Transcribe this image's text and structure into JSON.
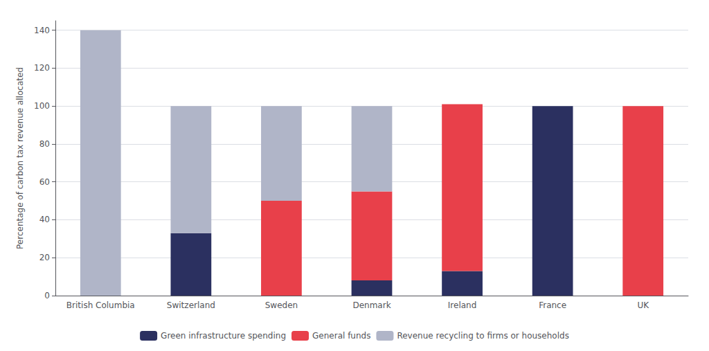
{
  "chart_data": {
    "type": "bar",
    "stacked": true,
    "categories": [
      "British Columbia",
      "Switzerland",
      "Sweden",
      "Denmark",
      "Ireland",
      "France",
      "UK"
    ],
    "series": [
      {
        "name": "Green infrastructure spending",
        "color": "#2b3060",
        "values": [
          0,
          33,
          0,
          8,
          13,
          100,
          0
        ]
      },
      {
        "name": "General funds",
        "color": "#e8404a",
        "values": [
          0,
          0,
          50,
          47,
          88,
          0,
          100
        ]
      },
      {
        "name": "Revenue recycling to firms or households",
        "color": "#b0b5c8",
        "values": [
          140,
          67,
          50,
          45,
          0,
          0,
          0
        ]
      }
    ],
    "ylabel": "Percentage of carbon tax revenue allocated",
    "ylim": [
      0,
      145
    ],
    "yticks": [
      0,
      20,
      40,
      60,
      80,
      100,
      120,
      140
    ],
    "grid": true,
    "legend": "bottom"
  }
}
